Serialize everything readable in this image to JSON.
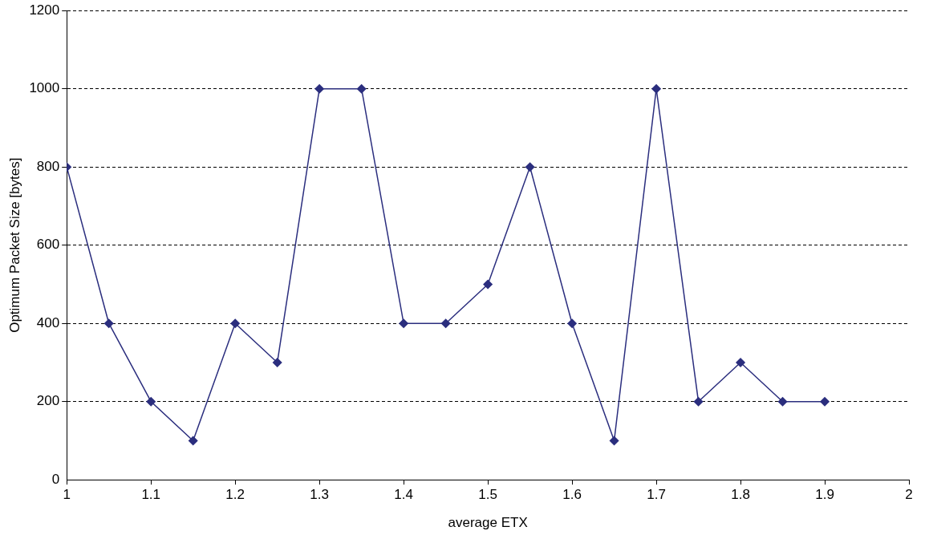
{
  "chart_data": {
    "type": "line",
    "xlabel": "average ETX",
    "ylabel": "Optimum Packet Size [bytes]",
    "x": [
      1,
      1.05,
      1.1,
      1.15,
      1.2,
      1.25,
      1.3,
      1.35,
      1.4,
      1.45,
      1.5,
      1.55,
      1.6,
      1.65,
      1.7,
      1.75,
      1.8,
      1.85,
      1.9
    ],
    "series": [
      {
        "color": "#2b2e7e",
        "values": [
          800,
          400,
          200,
          100,
          400,
          300,
          1000,
          1000,
          400,
          400,
          500,
          800,
          400,
          100,
          1000,
          200,
          300,
          200,
          200
        ]
      }
    ],
    "xlim": [
      1,
      2
    ],
    "xticks": [
      1,
      1.1,
      1.2,
      1.3,
      1.4,
      1.5,
      1.6,
      1.7,
      1.8,
      1.9,
      2
    ],
    "ylim": [
      0,
      1200
    ],
    "yticks": [
      0,
      200,
      400,
      600,
      800,
      1000,
      1200
    ],
    "grid": "y",
    "legend": false,
    "marker": "diamond",
    "line_style": "solid"
  }
}
